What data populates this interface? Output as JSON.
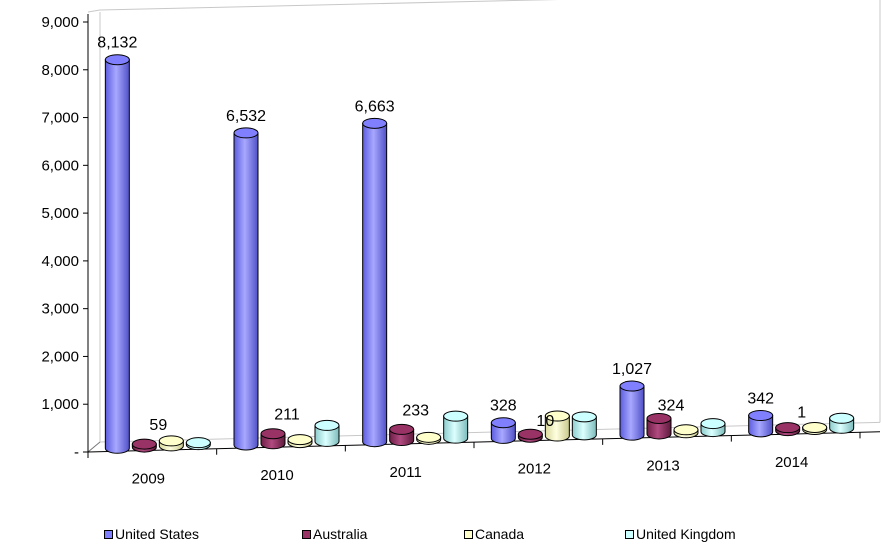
{
  "chart_data": {
    "type": "bar",
    "style": "3d-cylinder",
    "title": "",
    "xlabel": "",
    "ylabel": "",
    "categories": [
      "2009",
      "2010",
      "2011",
      "2012",
      "2013",
      "2014"
    ],
    "ylim": [
      0,
      9000
    ],
    "y_ticks": [
      {
        "value": 0,
        "label": "-"
      },
      {
        "value": 1000,
        "label": "1,000"
      },
      {
        "value": 2000,
        "label": "2,000"
      },
      {
        "value": 3000,
        "label": "3,000"
      },
      {
        "value": 4000,
        "label": "4,000"
      },
      {
        "value": 5000,
        "label": "5,000"
      },
      {
        "value": 6000,
        "label": "6,000"
      },
      {
        "value": 7000,
        "label": "7,000"
      },
      {
        "value": 8000,
        "label": "8,000"
      },
      {
        "value": 9000,
        "label": "9,000"
      }
    ],
    "series": [
      {
        "name": "United States",
        "color": "#8080ff",
        "values": [
          8132,
          6532,
          6663,
          328,
          1027,
          342
        ],
        "labels": [
          "8,132",
          "6,532",
          "6,663",
          "328",
          "1,027",
          "342"
        ]
      },
      {
        "name": "Australia",
        "color": "#993366",
        "values": [
          59,
          211,
          233,
          10,
          324,
          1
        ],
        "labels": [
          "59",
          "211",
          "233",
          "10",
          "324",
          "1"
        ]
      },
      {
        "name": "Canada",
        "color": "#ffffcc",
        "values": [
          null,
          null,
          null,
          null,
          null,
          null
        ],
        "labels": [
          null,
          null,
          null,
          null,
          null,
          null
        ]
      },
      {
        "name": "United Kingdom",
        "color": "#ccffff",
        "values": [
          null,
          null,
          null,
          null,
          null,
          null
        ],
        "labels": [
          null,
          null,
          null,
          null,
          null,
          null
        ]
      }
    ],
    "grid": false,
    "legend_position": "bottom"
  }
}
